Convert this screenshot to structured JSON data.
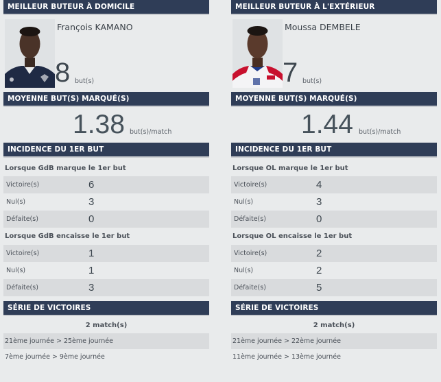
{
  "home": {
    "top_scorer_header": "MEILLEUR BUTEUR À DOMICILE",
    "player_name": "François KAMANO",
    "goals": "8",
    "goals_unit": "but(s)",
    "avg_header": "MOYENNE BUT(S) MARQUÉ(S)",
    "avg_value": "1.38",
    "avg_unit": "but(s)/match",
    "incidence_header": "INCIDENCE DU 1ER BUT",
    "scores_first_label": "Lorsque GdB marque le 1er but",
    "scores_first": [
      {
        "label": "Victoire(s)",
        "value": "6"
      },
      {
        "label": "Nul(s)",
        "value": "3"
      },
      {
        "label": "Défaite(s)",
        "value": "0"
      }
    ],
    "concedes_first_label": "Lorsque GdB encaisse le 1er but",
    "concedes_first": [
      {
        "label": "Victoire(s)",
        "value": "1"
      },
      {
        "label": "Nul(s)",
        "value": "1"
      },
      {
        "label": "Défaite(s)",
        "value": "3"
      }
    ],
    "series_header": "SÉRIE DE VICTOIRES",
    "series_count": "2 match(s)",
    "series": [
      "21ème journée > 25ème journée",
      "7ème journée > 9ème journée"
    ]
  },
  "away": {
    "top_scorer_header": "MEILLEUR BUTEUR À L'EXTÉRIEUR",
    "player_name": "Moussa DEMBELE",
    "goals": "7",
    "goals_unit": "but(s)",
    "avg_header": "MOYENNE BUT(S) MARQUÉ(S)",
    "avg_value": "1.44",
    "avg_unit": "but(s)/match",
    "incidence_header": "INCIDENCE DU 1ER BUT",
    "scores_first_label": "Lorsque OL marque le 1er but",
    "scores_first": [
      {
        "label": "Victoire(s)",
        "value": "4"
      },
      {
        "label": "Nul(s)",
        "value": "3"
      },
      {
        "label": "Défaite(s)",
        "value": "0"
      }
    ],
    "concedes_first_label": "Lorsque OL encaisse le 1er but",
    "concedes_first": [
      {
        "label": "Victoire(s)",
        "value": "2"
      },
      {
        "label": "Nul(s)",
        "value": "2"
      },
      {
        "label": "Défaite(s)",
        "value": "5"
      }
    ],
    "series_header": "SÉRIE DE VICTOIRES",
    "series_count": "2 match(s)",
    "series": [
      "21ème journée > 22ème journée",
      "11ème journée > 13ème journée"
    ]
  },
  "colors": {
    "header_bg": "#2f3d57",
    "page_bg": "#e9ebec",
    "row_shade": "#d9dbdd"
  }
}
